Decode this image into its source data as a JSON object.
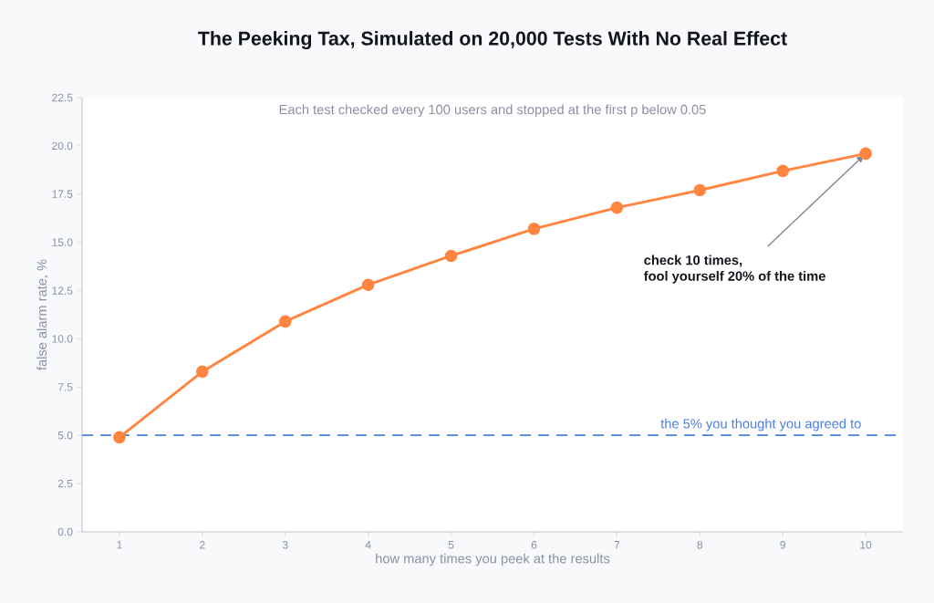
{
  "chart_data": {
    "type": "line",
    "title": "The Peeking Tax, Simulated on 20,000 Tests With No Real Effect",
    "subtitle": "Each test checked every 100 users and stopped at the first p below 0.05",
    "xlabel": "how many times you peek at the results",
    "ylabel": "false alarm rate, %",
    "x": [
      1,
      2,
      3,
      4,
      5,
      6,
      7,
      8,
      9,
      10
    ],
    "series": [
      {
        "color": "#ff8540",
        "values": [
          4.9,
          8.3,
          10.9,
          12.8,
          14.3,
          15.7,
          16.8,
          17.7,
          18.7,
          19.6
        ]
      }
    ],
    "xlim": [
      0.55,
      10.45
    ],
    "xticks": [
      1,
      2,
      3,
      4,
      5,
      6,
      7,
      8,
      9,
      10
    ],
    "ylim": [
      0,
      22.5
    ],
    "yticks": [
      {
        "value": 0,
        "label": "0.0"
      },
      {
        "value": 2.5,
        "label": "2.5"
      },
      {
        "value": 5,
        "label": "5.0"
      },
      {
        "value": 7.5,
        "label": "7.5"
      },
      {
        "value": 10,
        "label": "10.0"
      },
      {
        "value": 12.5,
        "label": "12.5"
      },
      {
        "value": 15,
        "label": "15.0"
      },
      {
        "value": 17.5,
        "label": "17.5"
      },
      {
        "value": 20,
        "label": "20.0"
      },
      {
        "value": 22.5,
        "label": "22.5"
      }
    ],
    "ref_lines": [
      {
        "axis": "y",
        "value": 5,
        "label": "the 5% you thought you agreed to",
        "color": "#4a7fe0",
        "line_style": "dashed"
      }
    ],
    "annotations": [
      "check 10 times,",
      "fool yourself 20% of the time"
    ],
    "marker": "circle",
    "line_style": "solid",
    "grid": false
  }
}
